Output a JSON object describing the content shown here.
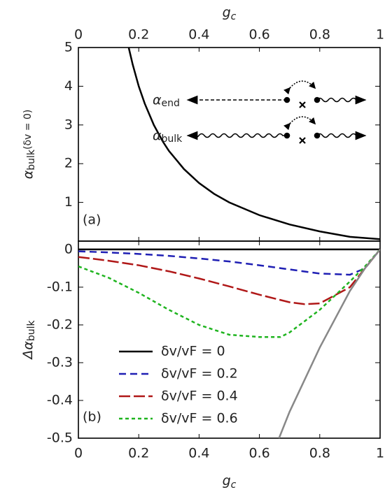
{
  "chart_data": [
    {
      "type": "line",
      "panel_label": "(a)",
      "xlabel": "g",
      "xlabel_sub": "c",
      "ylabel": "α",
      "ylabel_sub": "bulk",
      "ylabel_rest": "(δv = 0)",
      "xlim": [
        0,
        1
      ],
      "ylim": [
        0,
        5
      ],
      "xticks": [
        0,
        0.2,
        0.4,
        0.6,
        0.8,
        1
      ],
      "yticks": [
        1,
        2,
        3,
        4,
        5
      ],
      "series": [
        {
          "color": "#000000",
          "dash": "solid",
          "x": [
            0.167,
            0.18,
            0.2,
            0.22,
            0.25,
            0.28,
            0.3,
            0.35,
            0.4,
            0.45,
            0.5,
            0.6,
            0.7,
            0.8,
            0.9,
            1
          ],
          "values": [
            4.99,
            4.56,
            4,
            3.55,
            3,
            2.57,
            2.33,
            1.86,
            1.5,
            1.22,
            1,
            0.67,
            0.43,
            0.25,
            0.11,
            0.05
          ]
        }
      ],
      "inset": [
        {
          "symbol": "α",
          "sub": "end"
        },
        {
          "symbol": "α",
          "sub": "bulk"
        }
      ]
    },
    {
      "type": "line",
      "panel_label": "(b)",
      "xlabel": "g",
      "xlabel_sub": "c",
      "ylabel": "Δα",
      "ylabel_sub": "bulk",
      "xlim": [
        0,
        1
      ],
      "ylim": [
        -0.5,
        0.022
      ],
      "xticks": [
        0,
        0.2,
        0.4,
        0.6,
        0.8,
        1
      ],
      "yticks": [
        0,
        -0.1,
        -0.2,
        -0.3,
        -0.4,
        -0.5
      ],
      "series": [
        {
          "name": "δv/vF = 0",
          "color": "#000000",
          "dash": "solid",
          "x": [
            0,
            1
          ],
          "values": [
            0,
            0
          ]
        },
        {
          "name": "δv/vF = 0.2",
          "color": "#1f1fb4",
          "dash": "10,6",
          "x": [
            0,
            0.1,
            0.2,
            0.3,
            0.4,
            0.5,
            0.6,
            0.7,
            0.8,
            0.9,
            0.95,
            1
          ],
          "values": [
            -0.005,
            -0.008,
            -0.012,
            -0.017,
            -0.024,
            -0.032,
            -0.042,
            -0.053,
            -0.064,
            -0.067,
            -0.05,
            0
          ]
        },
        {
          "name": "δv/vF = 0.4",
          "color": "#b01818",
          "dash": "16,5",
          "x": [
            0,
            0.1,
            0.2,
            0.3,
            0.4,
            0.5,
            0.6,
            0.7,
            0.75,
            0.8,
            0.9,
            0.95,
            1
          ],
          "values": [
            -0.02,
            -0.03,
            -0.042,
            -0.058,
            -0.077,
            -0.098,
            -0.12,
            -0.14,
            -0.145,
            -0.143,
            -0.1,
            -0.05,
            0
          ]
        },
        {
          "name": "δv/vF = 0.6",
          "color": "#1fb41f",
          "dash": "5,4",
          "x": [
            0,
            0.1,
            0.2,
            0.3,
            0.4,
            0.5,
            0.6,
            0.67,
            0.7,
            0.8,
            0.9,
            0.95,
            1
          ],
          "values": [
            -0.045,
            -0.075,
            -0.115,
            -0.16,
            -0.2,
            -0.226,
            -0.232,
            -0.232,
            -0.22,
            -0.16,
            -0.085,
            -0.045,
            0
          ]
        },
        {
          "color": "#888888",
          "dash": "solid",
          "x": [
            0.665,
            0.7,
            0.8,
            0.9,
            0.95,
            1
          ],
          "values": [
            -0.5,
            -0.43,
            -0.26,
            -0.11,
            -0.05,
            0
          ]
        }
      ]
    }
  ]
}
